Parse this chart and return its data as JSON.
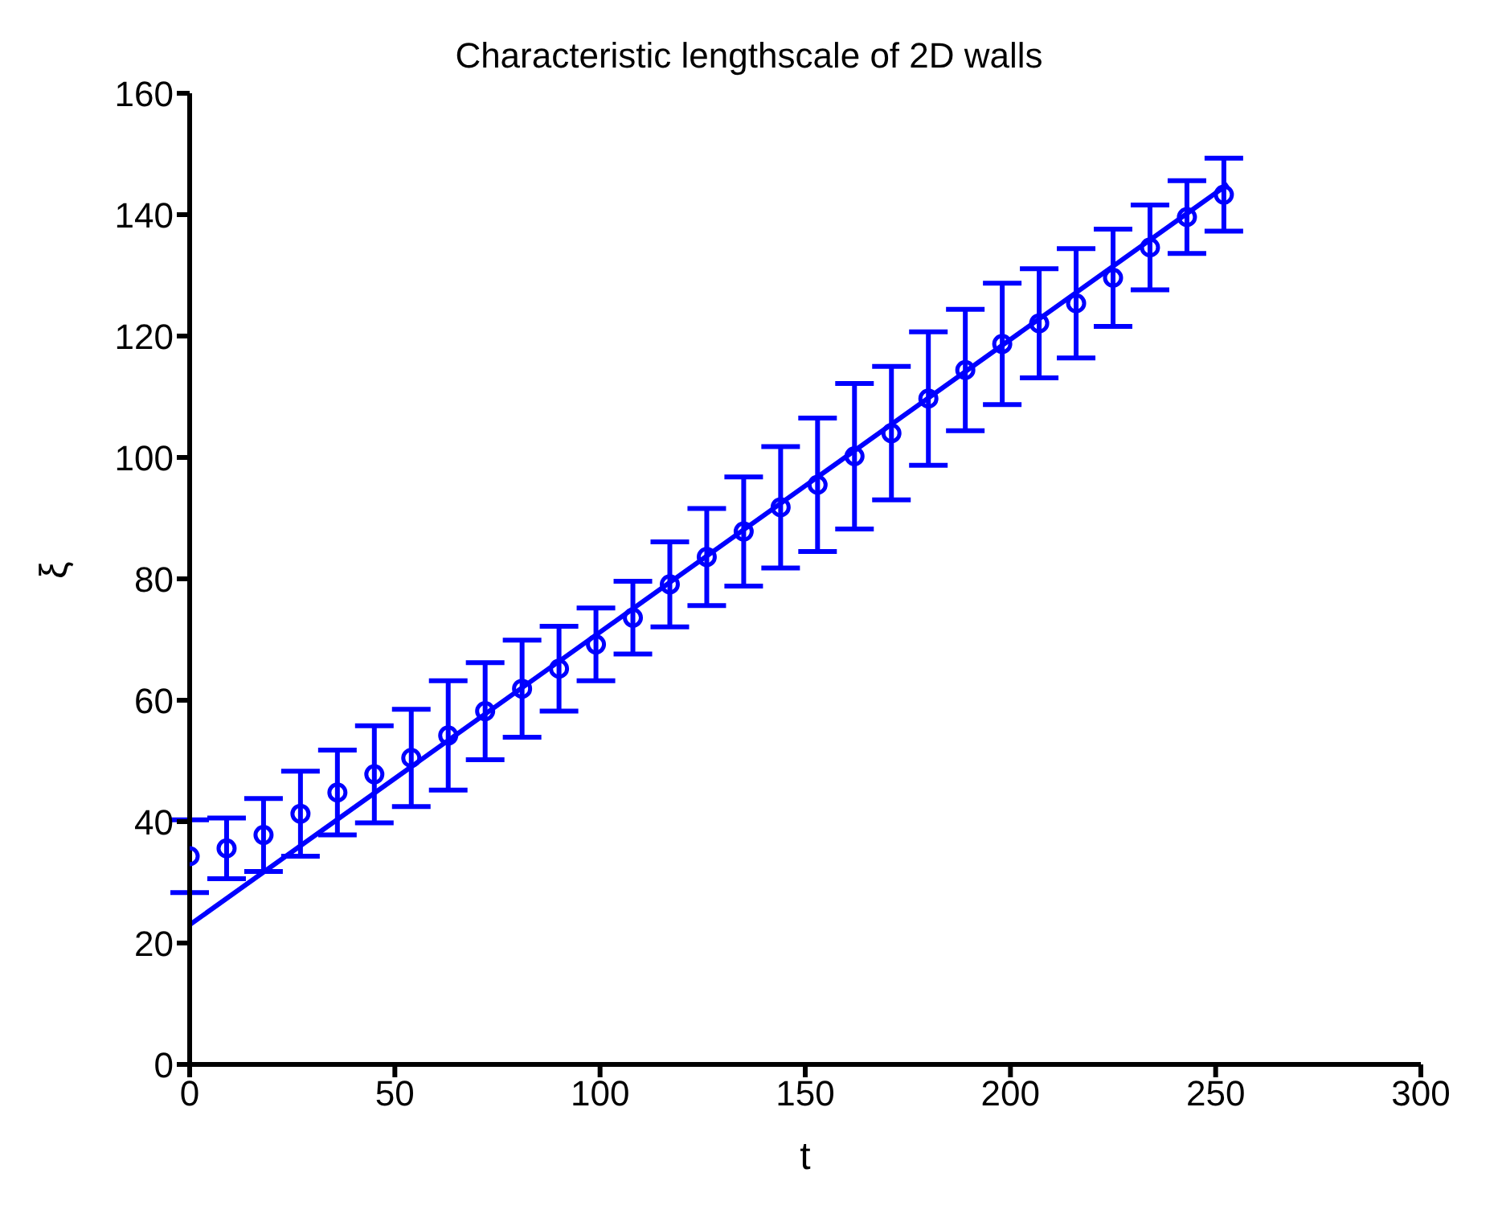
{
  "chart_data": {
    "type": "scatter",
    "title": "Characteristic lengthscale of 2D walls",
    "xlabel": "t",
    "ylabel": "ξ",
    "xlim": [
      0,
      300
    ],
    "xticks": [
      0,
      50,
      100,
      150,
      200,
      250,
      300
    ],
    "ylim": [
      0,
      160
    ],
    "yticks": [
      0,
      20,
      40,
      60,
      80,
      100,
      120,
      140,
      160
    ],
    "marker": "circle",
    "series": [
      {
        "color": "#0000ff",
        "x": [
          0,
          9,
          18,
          27,
          36,
          45,
          54,
          63,
          72,
          81,
          90,
          99,
          108,
          117,
          126,
          135,
          144,
          153,
          162,
          171,
          180,
          189,
          198,
          207,
          216,
          225,
          234,
          243,
          252
        ],
        "values": [
          34.3,
          35.6,
          37.8,
          41.3,
          44.8,
          47.8,
          50.5,
          54.2,
          58.2,
          61.9,
          65.2,
          69.2,
          73.6,
          79.1,
          83.6,
          87.8,
          91.8,
          95.5,
          100.2,
          104,
          109.7,
          114.4,
          118.7,
          122.1,
          125.4,
          129.6,
          134.6,
          139.6,
          143.3
        ],
        "errors": [
          6,
          5,
          6,
          7,
          7,
          8,
          8,
          9,
          8,
          8,
          7,
          6,
          6,
          7,
          8,
          9,
          10,
          11,
          12,
          11,
          11,
          10,
          10,
          9,
          9,
          8,
          7,
          6,
          6
        ]
      },
      {
        "type": "line",
        "marker": "none",
        "color": "#0000ff",
        "x": [
          0,
          253
        ],
        "values": [
          23,
          145
        ]
      }
    ]
  }
}
